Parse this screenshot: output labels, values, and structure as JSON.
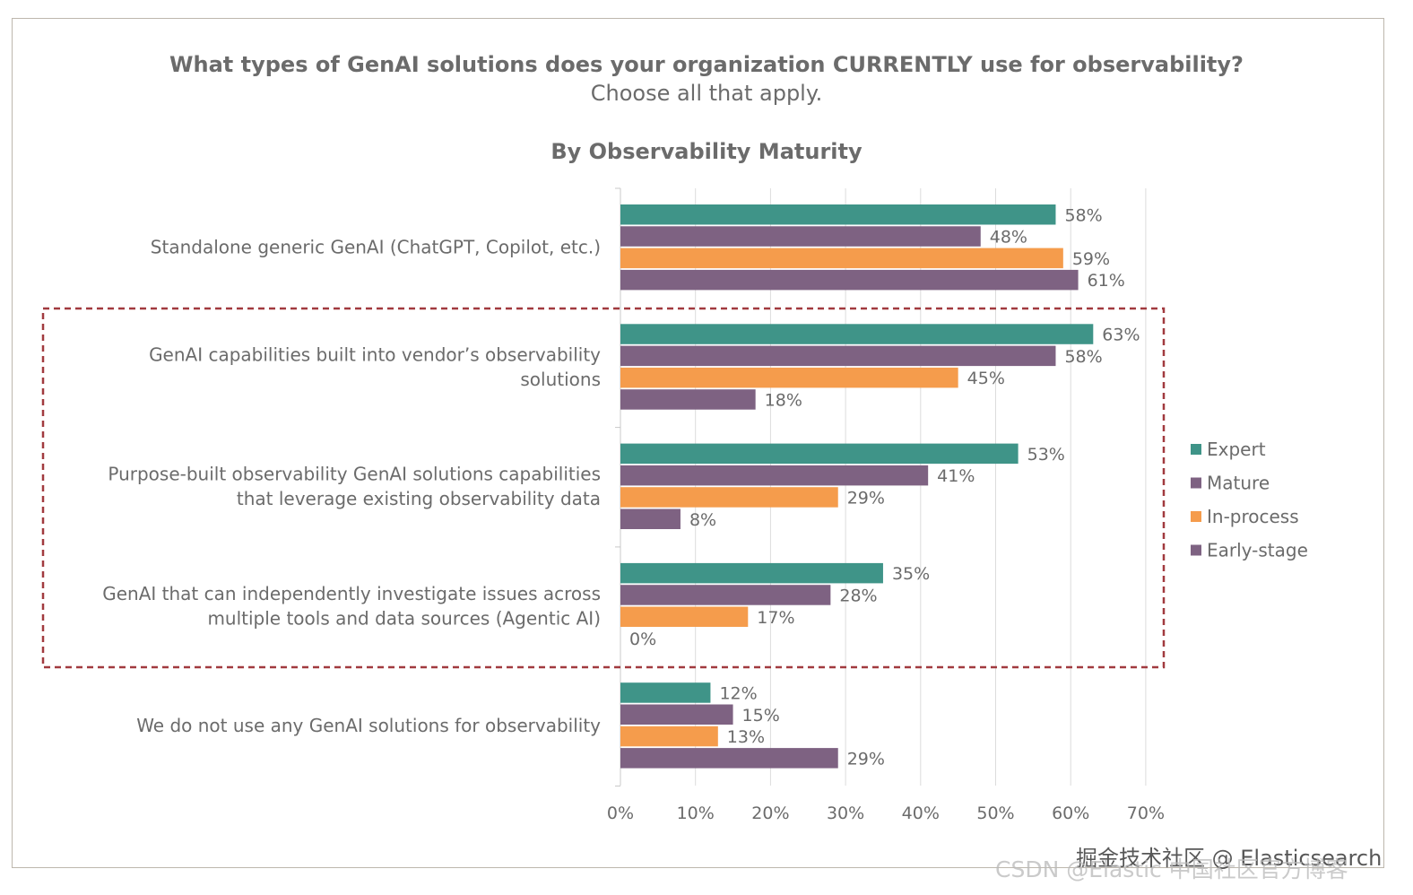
{
  "title": "What types of GenAI solutions does your organization CURRENTLY use for observability?",
  "subtitle": "Choose all that apply.",
  "section_title": "By Observability Maturity",
  "watermarks": {
    "line1": "掘金技术社区 @ Elasticsearch",
    "line2": "CSDN @Elastic 中国社区官方博客"
  },
  "colors": {
    "expert": "#3f9488",
    "mature": "#7e6282",
    "in_process": "#f59c4c",
    "early_stage": "#7e6282",
    "highlight_box": "#a13a3f",
    "text": "#6b6b6b"
  },
  "chart_data": {
    "type": "bar",
    "orientation": "horizontal",
    "categories": [
      [
        "Standalone generic GenAI (ChatGPT, Copilot, etc.)"
      ],
      [
        "GenAI capabilities built into vendor’s observability",
        "solutions"
      ],
      [
        "Purpose-built observability GenAI solutions capabilities",
        "that leverage existing observability data"
      ],
      [
        "GenAI that can independently investigate issues across",
        "multiple tools and data sources (Agentic AI)"
      ],
      [
        "We do not use any GenAI solutions for observability"
      ]
    ],
    "series": [
      {
        "name": "Expert",
        "color": "#3f9488",
        "values": [
          58,
          63,
          53,
          35,
          12
        ]
      },
      {
        "name": "Mature",
        "color": "#7e6282",
        "values": [
          48,
          58,
          41,
          28,
          15
        ]
      },
      {
        "name": "In-process",
        "color": "#f59c4c",
        "values": [
          59,
          45,
          29,
          17,
          13
        ]
      },
      {
        "name": "Early-stage",
        "color": "#7e6282",
        "values": [
          61,
          18,
          8,
          0,
          29
        ]
      }
    ],
    "xlim": [
      0,
      70
    ],
    "xticks": [
      "0%",
      "10%",
      "20%",
      "30%",
      "40%",
      "50%",
      "60%",
      "70%"
    ],
    "value_suffix": "%",
    "grid": true,
    "legend_position": "right",
    "highlighted_categories": [
      1,
      2,
      3
    ]
  }
}
